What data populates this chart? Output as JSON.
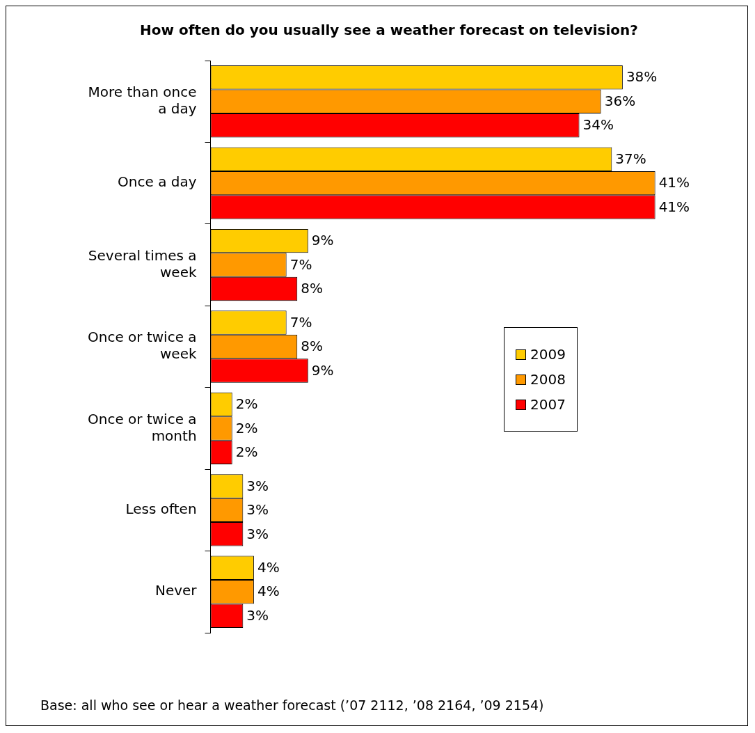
{
  "chart_data": {
    "type": "bar",
    "orientation": "horizontal",
    "title": "How often do you usually see a weather forecast on television?",
    "categories": [
      "More than once a day",
      "Once a day",
      "Several times a week",
      "Once or twice a week",
      "Once or twice a month",
      "Less often",
      "Never"
    ],
    "series": [
      {
        "name": "2009",
        "color": "#ffcc00",
        "values": [
          38,
          37,
          9,
          7,
          2,
          3,
          4
        ],
        "value_labels": [
          "38%",
          "37%",
          "9%",
          "7%",
          "2%",
          "3%",
          "4%"
        ]
      },
      {
        "name": "2008",
        "color": "#ff9900",
        "values": [
          36,
          41,
          7,
          8,
          2,
          3,
          4
        ],
        "value_labels": [
          "36%",
          "41%",
          "7%",
          "8%",
          "2%",
          "3%",
          "4%"
        ]
      },
      {
        "name": "2007",
        "color": "#ff0000",
        "values": [
          34,
          41,
          8,
          9,
          2,
          3,
          3
        ],
        "value_labels": [
          "34%",
          "41%",
          "8%",
          "9%",
          "2%",
          "3%",
          "3%"
        ]
      }
    ],
    "legend": "right",
    "tick_labels": "y",
    "annotations": [
      "Base: all who see or hear a weather forecast (’07 2112, ’08 2164, ’09 2154)"
    ]
  }
}
